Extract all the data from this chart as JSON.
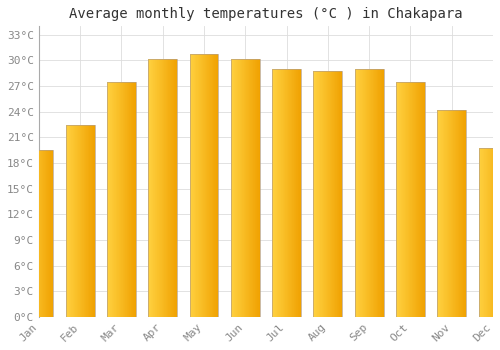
{
  "title": "Average monthly temperatures (°C ) in Chakapara",
  "months": [
    "Jan",
    "Feb",
    "Mar",
    "Apr",
    "May",
    "Jun",
    "Jul",
    "Aug",
    "Sep",
    "Oct",
    "Nov",
    "Dec"
  ],
  "temperatures": [
    19.5,
    22.5,
    27.5,
    30.2,
    30.7,
    30.2,
    29.0,
    28.8,
    29.0,
    27.5,
    24.2,
    19.8
  ],
  "bar_color_left": "#FFD040",
  "bar_color_right": "#F0A000",
  "bar_edge_color": "#C8A060",
  "ylim": [
    0,
    34
  ],
  "yticks": [
    0,
    3,
    6,
    9,
    12,
    15,
    18,
    21,
    24,
    27,
    30,
    33
  ],
  "ytick_labels": [
    "0°C",
    "3°C",
    "6°C",
    "9°C",
    "12°C",
    "15°C",
    "18°C",
    "21°C",
    "24°C",
    "27°C",
    "30°C",
    "33°C"
  ],
  "background_color": "#FFFFFF",
  "grid_color": "#DDDDDD",
  "title_fontsize": 10,
  "tick_fontsize": 8,
  "tick_color": "#888888",
  "title_color": "#333333"
}
